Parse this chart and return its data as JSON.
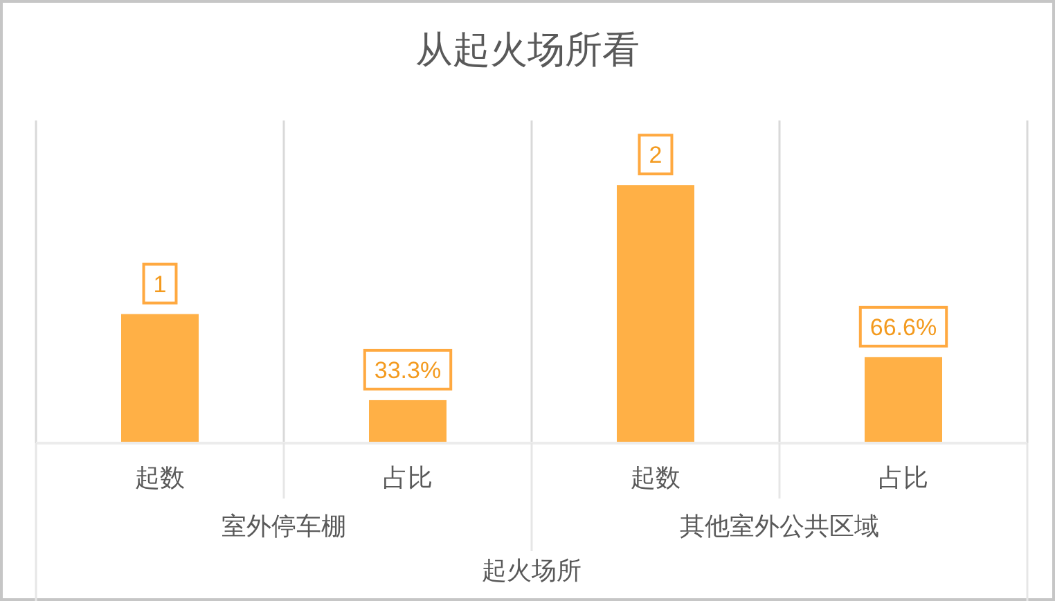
{
  "chart_data": {
    "type": "bar",
    "title": "从起火场所看",
    "categories": [
      "起数",
      "占比",
      "起数",
      "占比"
    ],
    "values": [
      1,
      0.333,
      2,
      0.666
    ],
    "value_labels": [
      "1",
      "33.3%",
      "2",
      "66.6%"
    ],
    "color": "#ffb046",
    "xlabel": "起火场所",
    "annotations": [
      "室外停车棚",
      "其他室外公共区域"
    ],
    "grid": "x"
  }
}
